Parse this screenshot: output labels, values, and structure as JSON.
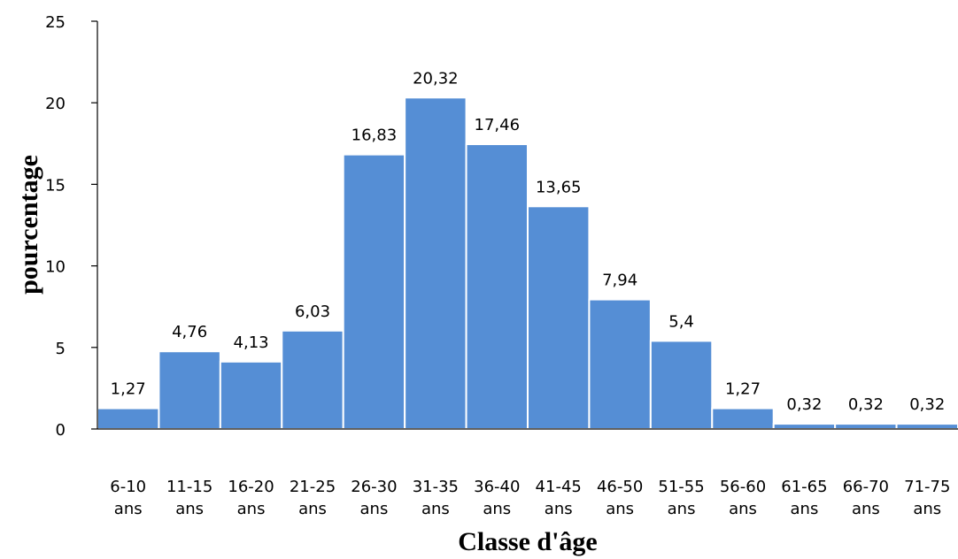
{
  "chart_data": {
    "type": "bar",
    "categories": [
      [
        "6-10",
        "ans"
      ],
      [
        "11-15",
        "ans"
      ],
      [
        "16-20",
        "ans"
      ],
      [
        "21-25",
        "ans"
      ],
      [
        "26-30",
        "ans"
      ],
      [
        "31-35",
        "ans"
      ],
      [
        "36-40",
        "ans"
      ],
      [
        "41-45",
        "ans"
      ],
      [
        "46-50",
        "ans"
      ],
      [
        "51-55",
        "ans"
      ],
      [
        "56-60",
        "ans"
      ],
      [
        "61-65",
        "ans"
      ],
      [
        "66-70",
        "ans"
      ],
      [
        "71-75",
        "ans"
      ]
    ],
    "values": [
      1.27,
      4.76,
      4.13,
      6.03,
      16.83,
      20.32,
      17.46,
      13.65,
      7.94,
      5.4,
      1.27,
      0.32,
      0.32,
      0.32
    ],
    "data_labels": [
      "1,27",
      "4,76",
      "4,13",
      "6,03",
      "16,83",
      "20,32",
      "17,46",
      "13,65",
      "7,94",
      "5,4",
      "1,27",
      "0,32",
      "0,32",
      "0,32"
    ],
    "xlabel": "Classe d'âge",
    "ylabel": "pourcentage",
    "ylim": [
      0,
      25
    ],
    "yticks": [
      0,
      5,
      10,
      15,
      20,
      25
    ],
    "grid": false,
    "bar_color": "#558ED5"
  }
}
